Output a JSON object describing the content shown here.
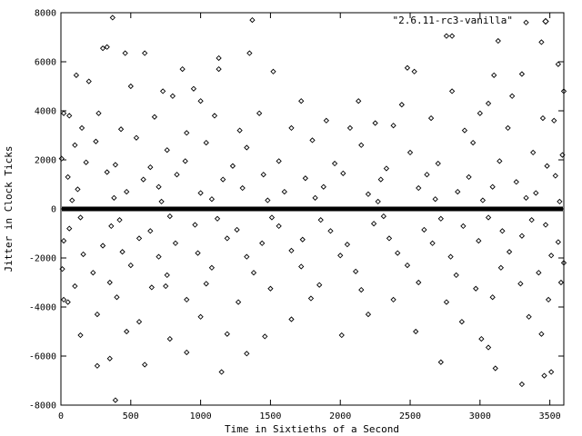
{
  "chart_data": {
    "type": "scatter",
    "title": "",
    "xlabel": "Time in Sixtieths of a Second",
    "ylabel": "Jitter in Clock Ticks",
    "xlim": [
      0,
      3600
    ],
    "ylim": [
      -8000,
      8000
    ],
    "xticks": [
      0,
      500,
      1000,
      1500,
      2000,
      2500,
      3000,
      3500
    ],
    "yticks": [
      -8000,
      -6000,
      -4000,
      -2000,
      0,
      2000,
      4000,
      6000,
      8000
    ],
    "grid": false,
    "legend_position": "top-right",
    "marker": "diamond",
    "series": [
      {
        "name": "\"2.6.11-rc3-vanilla\"",
        "color": "#000000",
        "points": [
          [
            370,
            7800
          ],
          [
            1370,
            7700
          ],
          [
            3330,
            7600
          ],
          [
            2760,
            7050
          ],
          [
            2800,
            7050
          ],
          [
            3130,
            6850
          ],
          [
            3440,
            6800
          ],
          [
            300,
            6550
          ],
          [
            330,
            6600
          ],
          [
            460,
            6350
          ],
          [
            600,
            6350
          ],
          [
            1350,
            6350
          ],
          [
            1130,
            6150
          ],
          [
            3560,
            5900
          ],
          [
            110,
            5450
          ],
          [
            870,
            5700
          ],
          [
            1130,
            5700
          ],
          [
            1520,
            5600
          ],
          [
            2480,
            5750
          ],
          [
            2530,
            5600
          ],
          [
            3100,
            5450
          ],
          [
            3300,
            5500
          ],
          [
            200,
            5200
          ],
          [
            500,
            5000
          ],
          [
            730,
            4800
          ],
          [
            950,
            4900
          ],
          [
            2800,
            4800
          ],
          [
            3600,
            4800
          ],
          [
            800,
            4600
          ],
          [
            1000,
            4400
          ],
          [
            1720,
            4400
          ],
          [
            2130,
            4400
          ],
          [
            2440,
            4250
          ],
          [
            3060,
            4300
          ],
          [
            3230,
            4600
          ],
          [
            20,
            3900
          ],
          [
            60,
            3800
          ],
          [
            270,
            3900
          ],
          [
            670,
            3750
          ],
          [
            1100,
            3800
          ],
          [
            1420,
            3900
          ],
          [
            1900,
            3600
          ],
          [
            2250,
            3500
          ],
          [
            2650,
            3700
          ],
          [
            3000,
            3900
          ],
          [
            3450,
            3700
          ],
          [
            3530,
            3600
          ],
          [
            150,
            3300
          ],
          [
            430,
            3250
          ],
          [
            900,
            3100
          ],
          [
            1280,
            3200
          ],
          [
            1650,
            3300
          ],
          [
            2070,
            3300
          ],
          [
            2380,
            3400
          ],
          [
            2890,
            3200
          ],
          [
            3200,
            3300
          ],
          [
            5,
            2050
          ],
          [
            100,
            2600
          ],
          [
            250,
            2750
          ],
          [
            540,
            2900
          ],
          [
            760,
            2400
          ],
          [
            1040,
            2700
          ],
          [
            1330,
            2500
          ],
          [
            1800,
            2800
          ],
          [
            2150,
            2600
          ],
          [
            2500,
            2300
          ],
          [
            2950,
            2700
          ],
          [
            3380,
            2300
          ],
          [
            3590,
            2200
          ],
          [
            180,
            1900
          ],
          [
            390,
            1800
          ],
          [
            640,
            1700
          ],
          [
            890,
            1950
          ],
          [
            1230,
            1750
          ],
          [
            1560,
            1950
          ],
          [
            1960,
            1850
          ],
          [
            2330,
            1650
          ],
          [
            2700,
            1850
          ],
          [
            3140,
            1950
          ],
          [
            3480,
            1750
          ],
          [
            50,
            1300
          ],
          [
            330,
            1500
          ],
          [
            590,
            1200
          ],
          [
            830,
            1400
          ],
          [
            1160,
            1200
          ],
          [
            1450,
            1400
          ],
          [
            1750,
            1250
          ],
          [
            2020,
            1450
          ],
          [
            2290,
            1200
          ],
          [
            2620,
            1400
          ],
          [
            2920,
            1300
          ],
          [
            3260,
            1100
          ],
          [
            3540,
            1350
          ],
          [
            120,
            800
          ],
          [
            470,
            700
          ],
          [
            700,
            900
          ],
          [
            1000,
            650
          ],
          [
            1300,
            850
          ],
          [
            1600,
            700
          ],
          [
            1880,
            900
          ],
          [
            2200,
            600
          ],
          [
            2560,
            850
          ],
          [
            2840,
            700
          ],
          [
            3090,
            900
          ],
          [
            3400,
            650
          ],
          [
            80,
            350
          ],
          [
            380,
            450
          ],
          [
            720,
            300
          ],
          [
            1080,
            400
          ],
          [
            1480,
            350
          ],
          [
            1820,
            450
          ],
          [
            2270,
            300
          ],
          [
            2680,
            400
          ],
          [
            3020,
            350
          ],
          [
            3330,
            450
          ],
          [
            3570,
            300
          ],
          [
            140,
            -350
          ],
          [
            420,
            -450
          ],
          [
            780,
            -300
          ],
          [
            1120,
            -400
          ],
          [
            1510,
            -350
          ],
          [
            1860,
            -450
          ],
          [
            2310,
            -300
          ],
          [
            2720,
            -400
          ],
          [
            3060,
            -350
          ],
          [
            3370,
            -450
          ],
          [
            60,
            -800
          ],
          [
            360,
            -700
          ],
          [
            640,
            -900
          ],
          [
            960,
            -650
          ],
          [
            1260,
            -850
          ],
          [
            1560,
            -700
          ],
          [
            1930,
            -900
          ],
          [
            2240,
            -600
          ],
          [
            2600,
            -850
          ],
          [
            2880,
            -700
          ],
          [
            3160,
            -900
          ],
          [
            3470,
            -650
          ],
          [
            20,
            -1300
          ],
          [
            300,
            -1500
          ],
          [
            560,
            -1200
          ],
          [
            820,
            -1400
          ],
          [
            1190,
            -1200
          ],
          [
            1440,
            -1400
          ],
          [
            1730,
            -1250
          ],
          [
            2050,
            -1450
          ],
          [
            2350,
            -1200
          ],
          [
            2660,
            -1400
          ],
          [
            2990,
            -1300
          ],
          [
            3300,
            -1100
          ],
          [
            3560,
            -1350
          ],
          [
            160,
            -1850
          ],
          [
            440,
            -1750
          ],
          [
            700,
            -1950
          ],
          [
            980,
            -1800
          ],
          [
            1330,
            -1950
          ],
          [
            1650,
            -1700
          ],
          [
            2000,
            -1900
          ],
          [
            2410,
            -1800
          ],
          [
            2790,
            -1950
          ],
          [
            3210,
            -1750
          ],
          [
            3510,
            -1900
          ],
          [
            10,
            -2450
          ],
          [
            230,
            -2600
          ],
          [
            500,
            -2300
          ],
          [
            760,
            -2700
          ],
          [
            1080,
            -2400
          ],
          [
            1380,
            -2600
          ],
          [
            1720,
            -2350
          ],
          [
            2110,
            -2550
          ],
          [
            2480,
            -2300
          ],
          [
            2830,
            -2700
          ],
          [
            3150,
            -2400
          ],
          [
            3420,
            -2600
          ],
          [
            3600,
            -2200
          ],
          [
            100,
            -3150
          ],
          [
            350,
            -3000
          ],
          [
            650,
            -3200
          ],
          [
            750,
            -3150
          ],
          [
            1040,
            -3050
          ],
          [
            1500,
            -3250
          ],
          [
            1850,
            -3100
          ],
          [
            2150,
            -3300
          ],
          [
            2560,
            -3000
          ],
          [
            2970,
            -3250
          ],
          [
            3290,
            -3050
          ],
          [
            3580,
            -3000
          ],
          [
            20,
            -3700
          ],
          [
            50,
            -3800
          ],
          [
            400,
            -3600
          ],
          [
            900,
            -3700
          ],
          [
            1270,
            -3800
          ],
          [
            1790,
            -3650
          ],
          [
            2380,
            -3700
          ],
          [
            2760,
            -3800
          ],
          [
            3090,
            -3600
          ],
          [
            3490,
            -3700
          ],
          [
            260,
            -4300
          ],
          [
            560,
            -4600
          ],
          [
            1000,
            -4400
          ],
          [
            1650,
            -4500
          ],
          [
            2200,
            -4300
          ],
          [
            2870,
            -4600
          ],
          [
            3350,
            -4400
          ],
          [
            140,
            -5150
          ],
          [
            470,
            -5000
          ],
          [
            780,
            -5300
          ],
          [
            1190,
            -5100
          ],
          [
            1460,
            -5200
          ],
          [
            2010,
            -5150
          ],
          [
            2540,
            -5000
          ],
          [
            3010,
            -5300
          ],
          [
            3440,
            -5100
          ],
          [
            900,
            -5850
          ],
          [
            1330,
            -5900
          ],
          [
            3060,
            -5650
          ],
          [
            350,
            -6100
          ],
          [
            2720,
            -6250
          ],
          [
            260,
            -6400
          ],
          [
            600,
            -6350
          ],
          [
            3110,
            -6500
          ],
          [
            3460,
            -6800
          ],
          [
            3510,
            -6650
          ],
          [
            1150,
            -6650
          ],
          [
            3300,
            -7150
          ],
          [
            390,
            -7800
          ]
        ]
      }
    ]
  }
}
